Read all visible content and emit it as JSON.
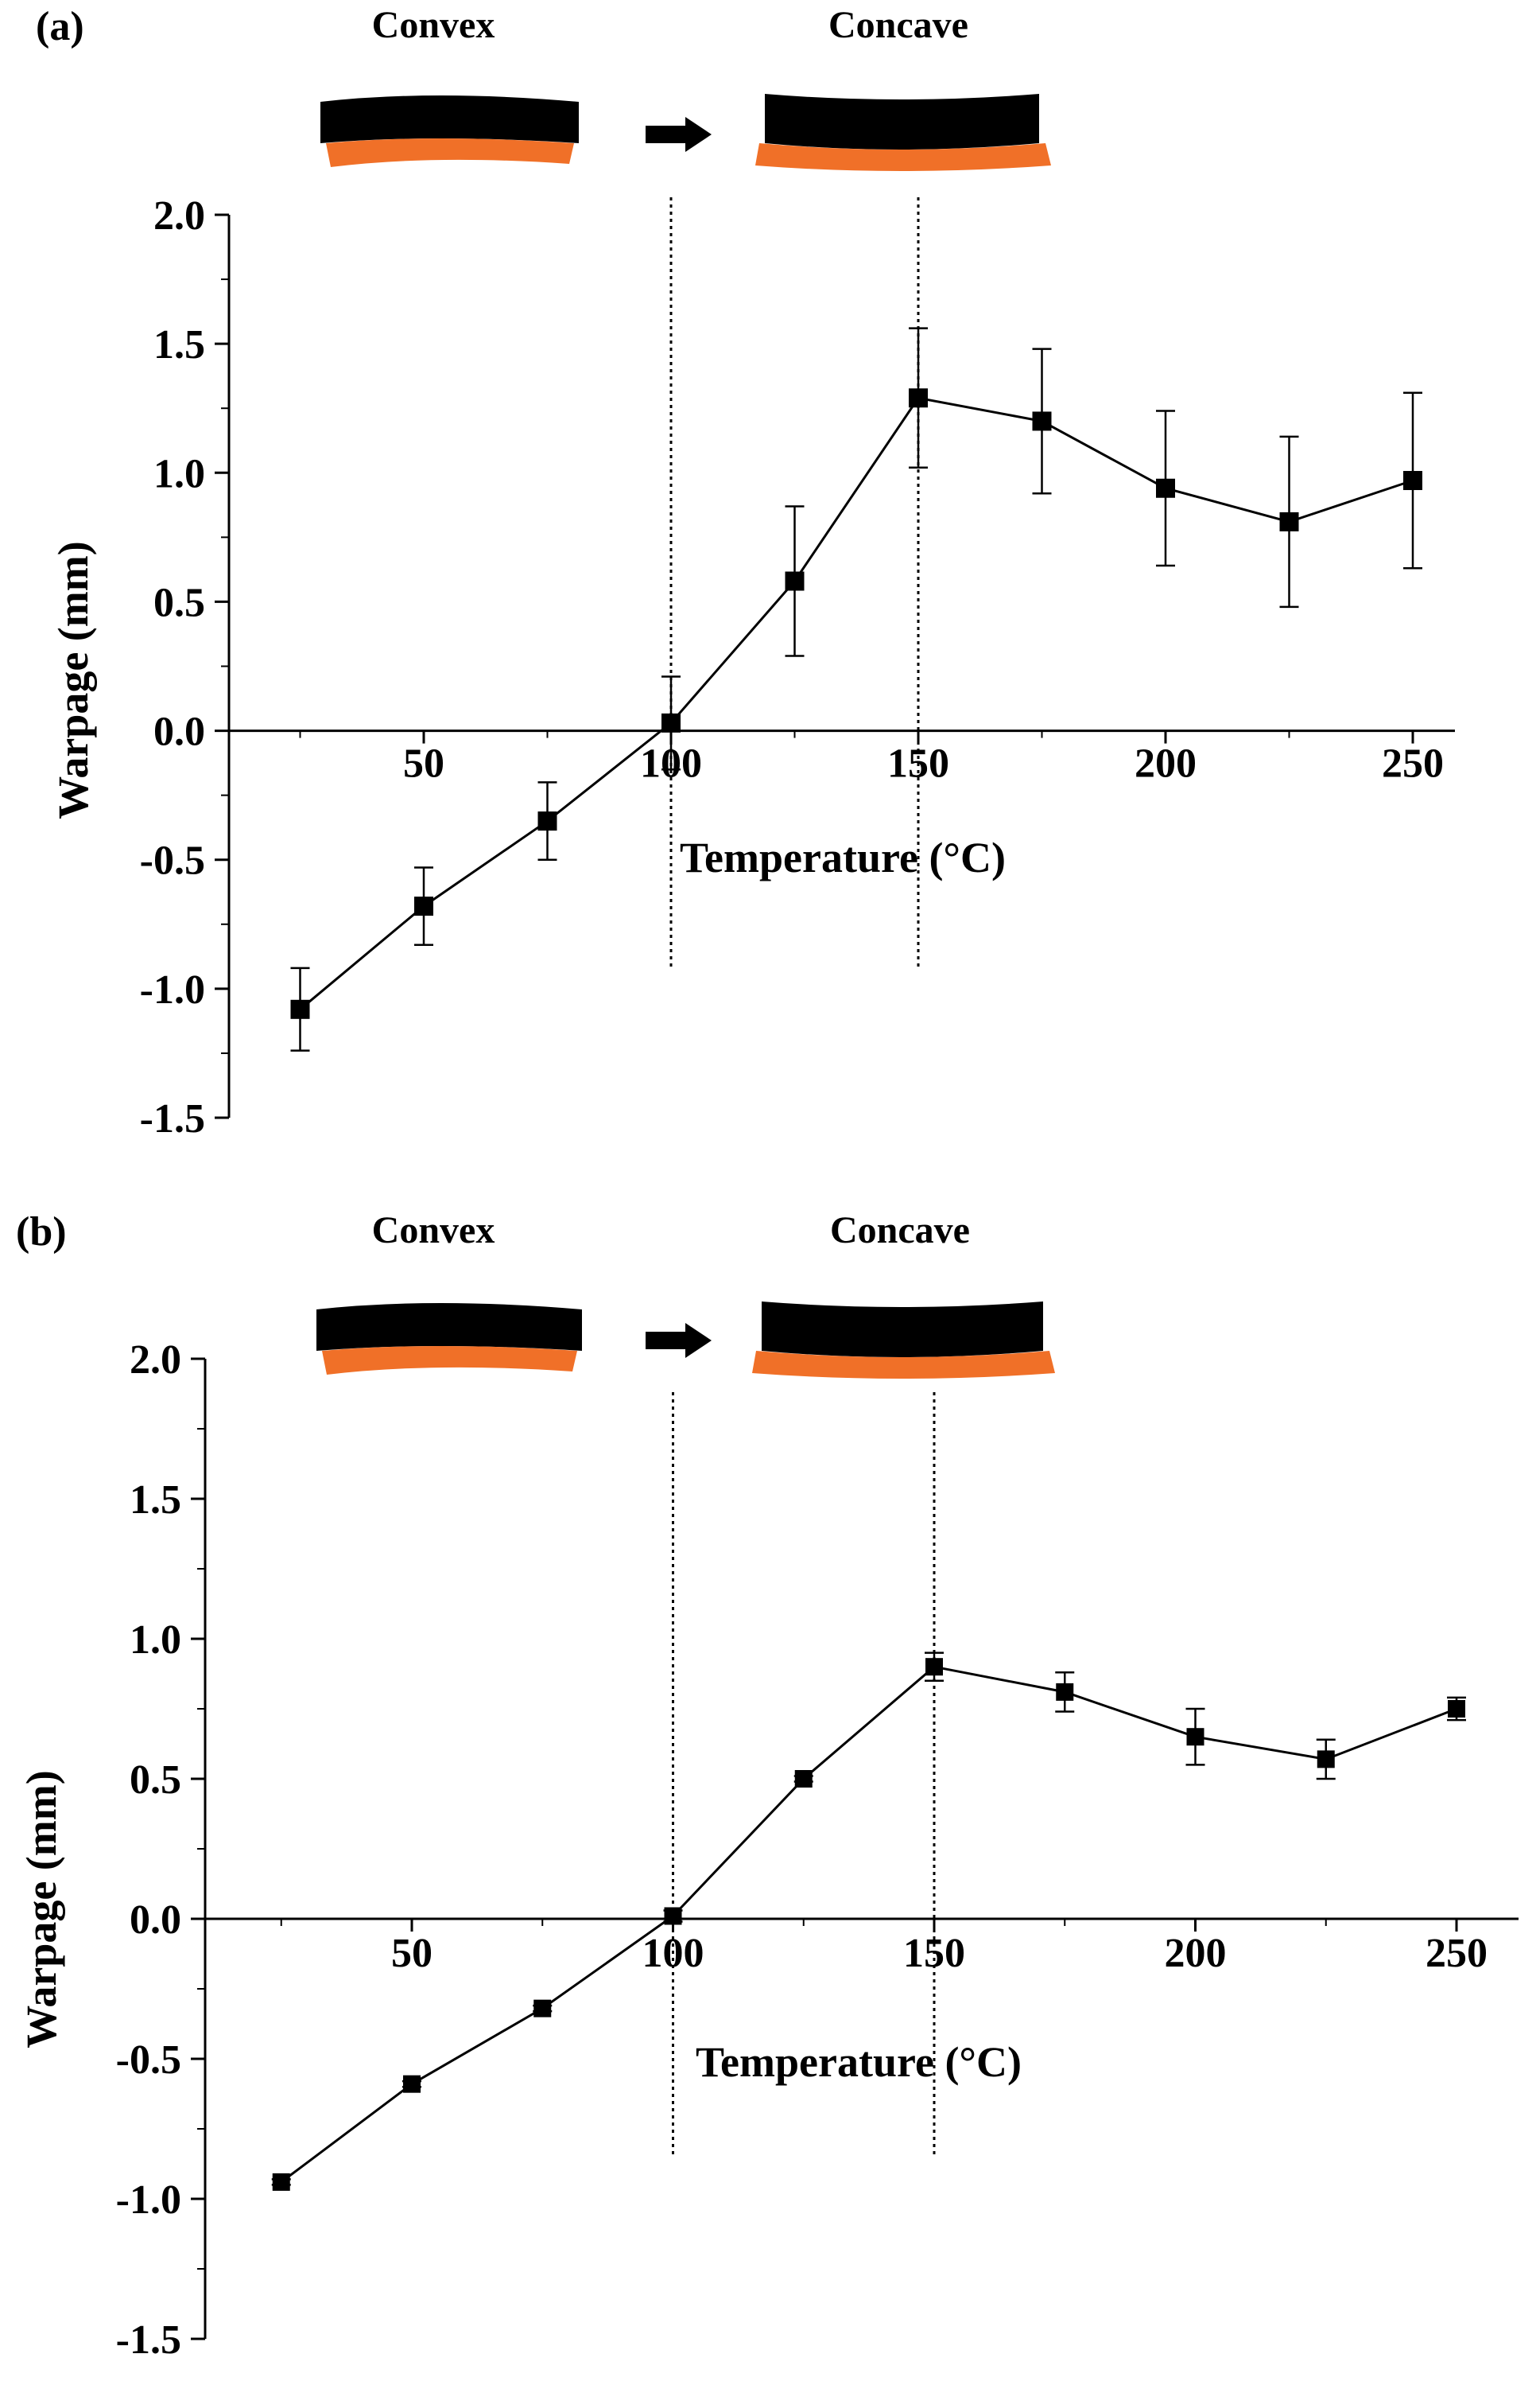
{
  "figure": {
    "panels": [
      {
        "label": "(a)",
        "convex_label": "Convex",
        "concave_label": "Concave"
      },
      {
        "label": "(b)",
        "convex_label": "Convex",
        "concave_label": "Concave"
      }
    ]
  },
  "colors": {
    "line": "#000000",
    "layer_top": "#000000",
    "layer_bottom": "#F07028",
    "background": "#ffffff"
  },
  "chart_data": [
    {
      "type": "line",
      "panel": "(a)",
      "title": "",
      "xlabel": "Temperature (°C)",
      "ylabel": "Warpage (mm)",
      "xlim": [
        0,
        260
      ],
      "ylim": [
        -1.5,
        2.0
      ],
      "xticks": [
        50,
        100,
        150,
        200,
        250
      ],
      "xtick_labels": [
        "50",
        "100",
        "150",
        "200",
        "250"
      ],
      "yticks": [
        2.0,
        1.5,
        1.0,
        0.5,
        0.0,
        -0.5,
        -1.0,
        -1.5
      ],
      "ytick_labels": [
        "2.0",
        "1.5",
        "1.0",
        "0.5",
        "0.0",
        "-0.5",
        "-1.0",
        "-1.5"
      ],
      "vlines": [
        100,
        150
      ],
      "series": [
        {
          "name": "Warpage",
          "x": [
            25,
            50,
            75,
            100,
            125,
            150,
            175,
            200,
            225,
            250
          ],
          "y": [
            -1.08,
            -0.68,
            -0.35,
            0.03,
            0.58,
            1.29,
            1.2,
            0.94,
            0.81,
            0.97
          ],
          "error": [
            0.16,
            0.15,
            0.15,
            0.18,
            0.29,
            0.27,
            0.28,
            0.3,
            0.33,
            0.34
          ]
        }
      ]
    },
    {
      "type": "line",
      "panel": "(b)",
      "title": "",
      "xlabel": "Temperature (°C)",
      "ylabel": "Warpage (mm)",
      "xlim": [
        0,
        260
      ],
      "ylim": [
        -1.5,
        2.0
      ],
      "xticks": [
        50,
        100,
        150,
        200,
        250
      ],
      "xtick_labels": [
        "50",
        "100",
        "150",
        "200",
        "250"
      ],
      "yticks": [
        2.0,
        1.5,
        1.0,
        0.5,
        0.0,
        -0.5,
        -1.0,
        -1.5
      ],
      "ytick_labels": [
        "2.0",
        "1.5",
        "1.0",
        "0.5",
        "0.0",
        "-0.5",
        "-1.0",
        "-1.5"
      ],
      "vlines": [
        100,
        150
      ],
      "series": [
        {
          "name": "Warpage",
          "x": [
            25,
            50,
            75,
            100,
            125,
            150,
            175,
            200,
            225,
            250
          ],
          "y": [
            -0.94,
            -0.59,
            -0.32,
            0.01,
            0.5,
            0.9,
            0.81,
            0.65,
            0.57,
            0.75
          ],
          "error": [
            0.01,
            0.01,
            0.01,
            0.02,
            0.01,
            0.05,
            0.07,
            0.1,
            0.07,
            0.04
          ]
        }
      ]
    }
  ]
}
